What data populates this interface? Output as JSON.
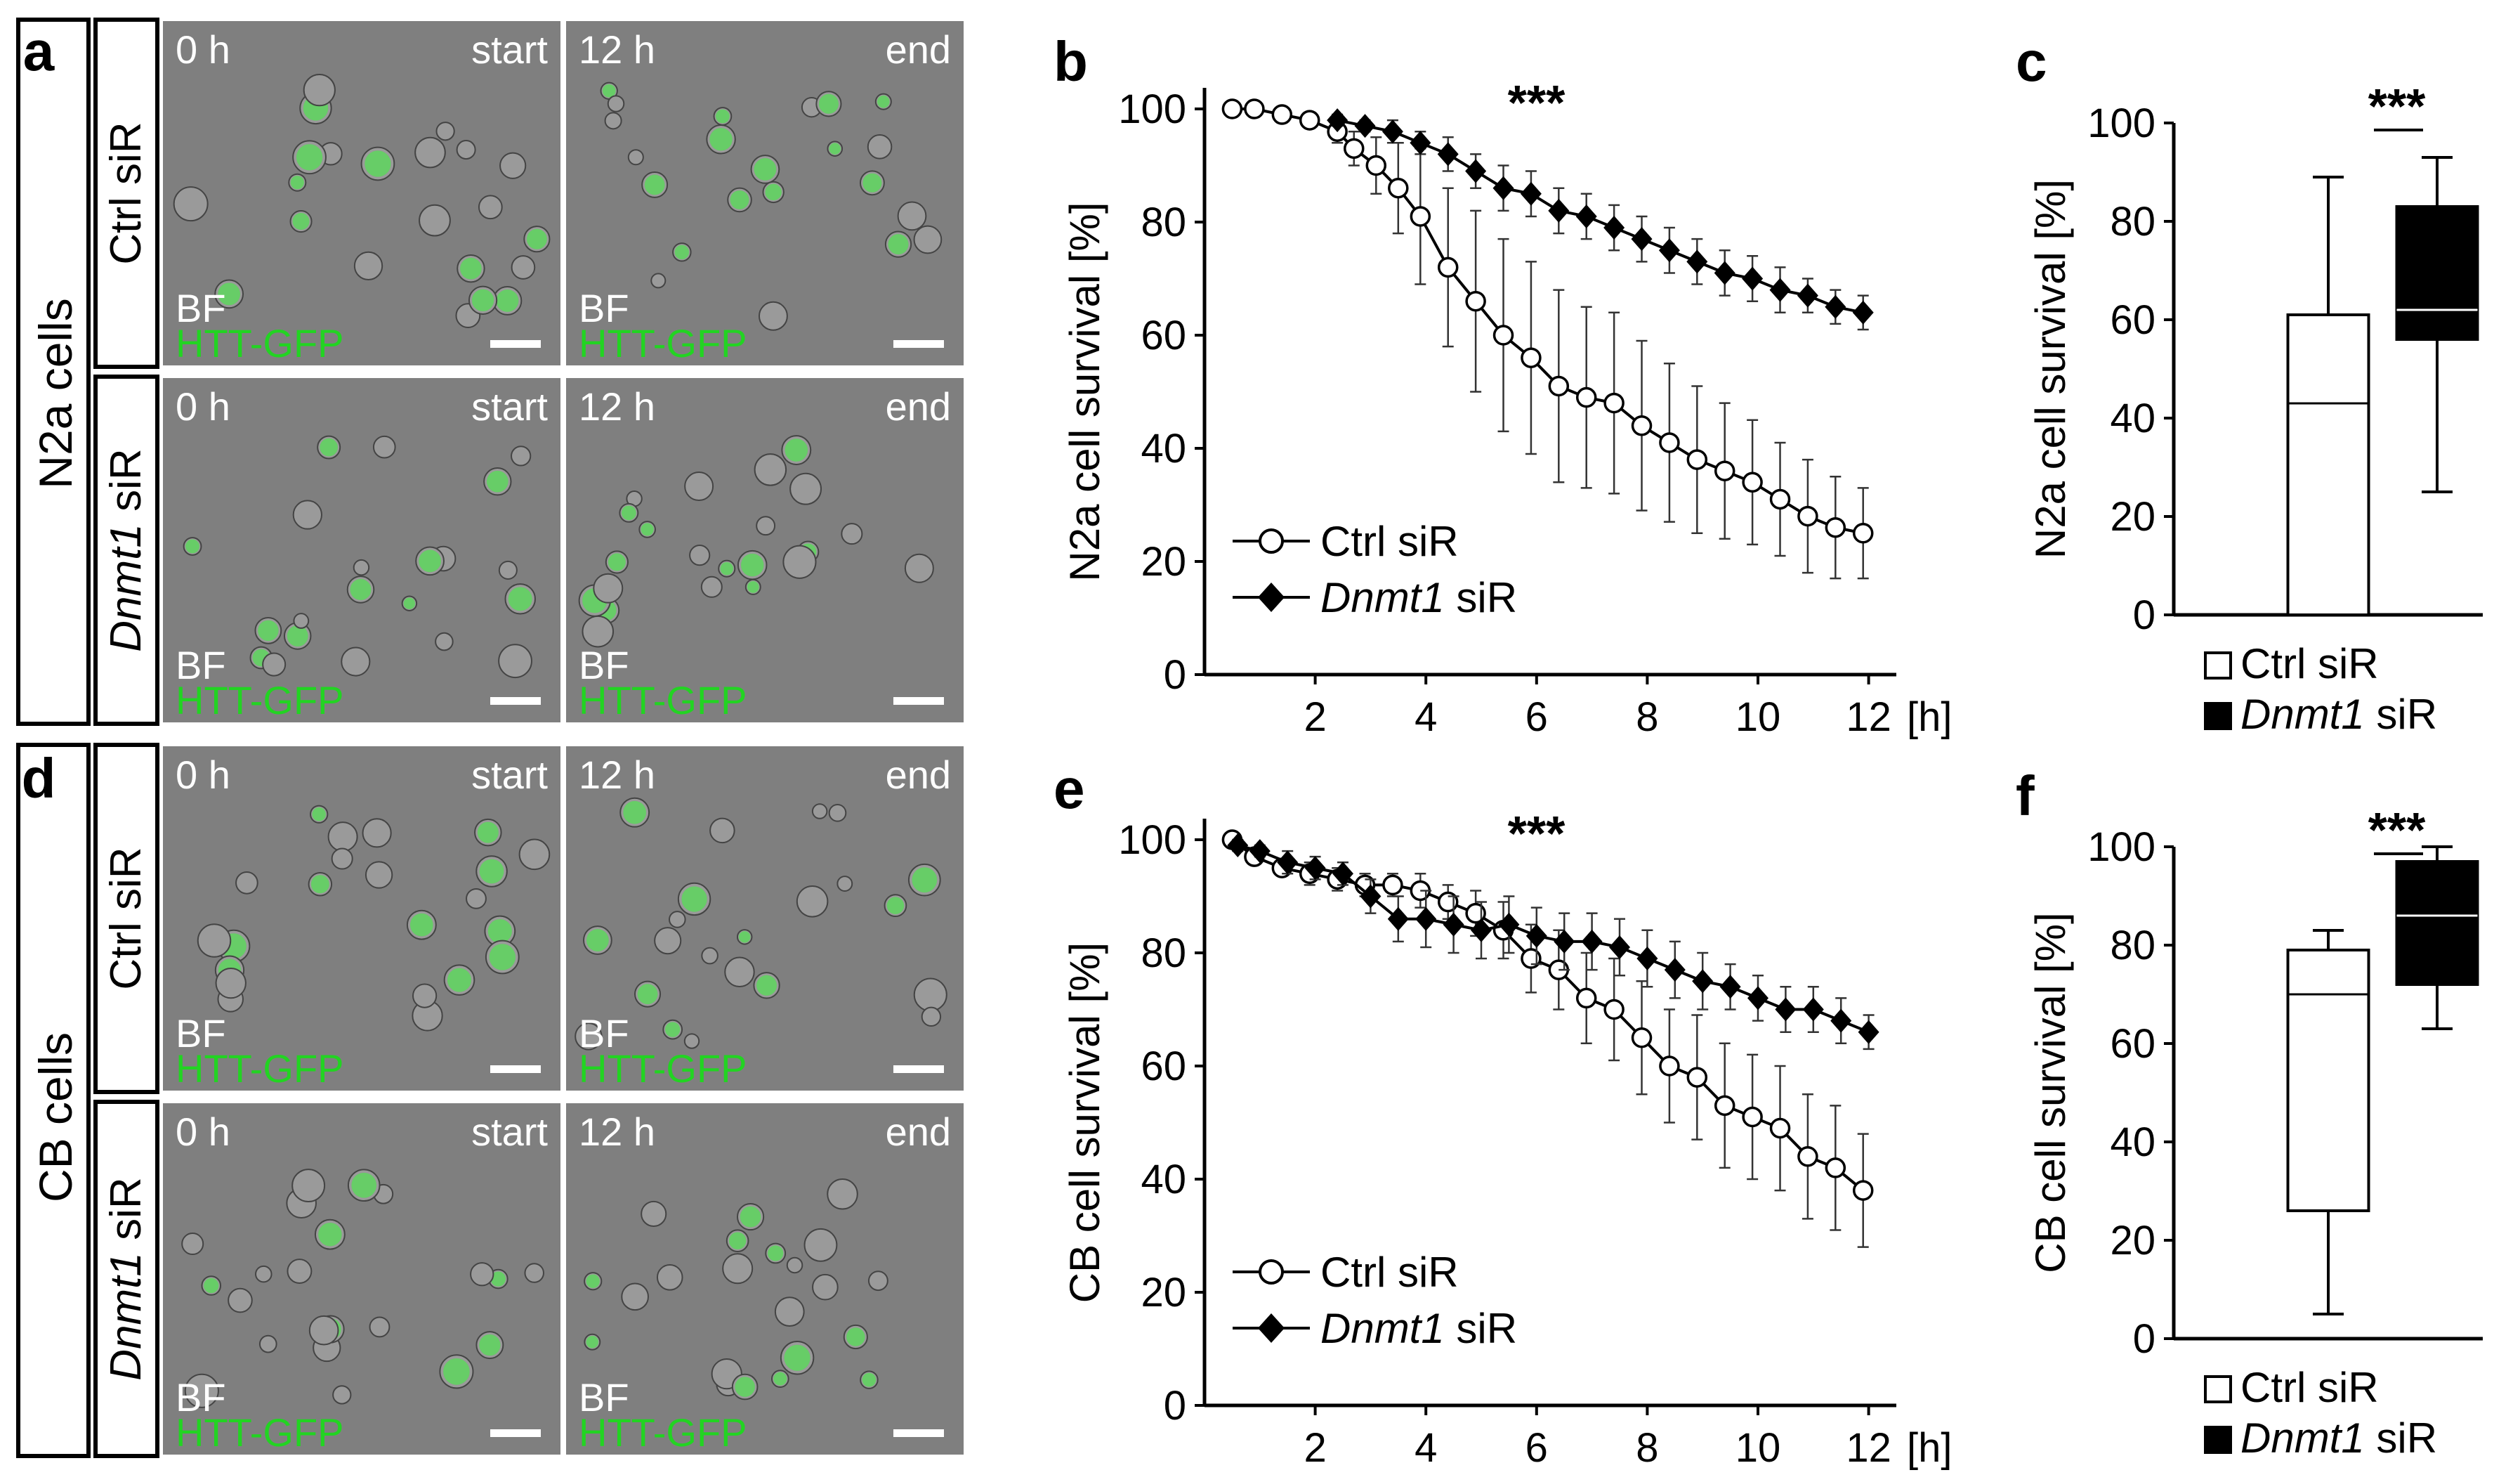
{
  "panel_letters": {
    "a": "a",
    "b": "b",
    "c": "c",
    "d": "d",
    "e": "e",
    "f": "f"
  },
  "row_labels": {
    "n2a": "N2a cells",
    "cb": "CB cells",
    "ctrl": "Ctrl siR",
    "dnmt1_gene": "Dnmt1",
    "dnmt1_suffix": " siR"
  },
  "microscopy_labels": {
    "time_start": "0 h",
    "time_end": "12 h",
    "start": "start",
    "end": "end",
    "bf": "BF",
    "htt": "HTT-GFP"
  },
  "colors": {
    "gfp_text": "#22d422",
    "gfp_cell": "#55dd55",
    "micrograph_bg": "#7f7f7f",
    "scale_bar": "#ffffff"
  },
  "chart_data": [
    {
      "id": "b",
      "type": "line",
      "ylabel": "N2a cell survival [%]",
      "xunit": "[h]",
      "xticks": [
        2,
        4,
        6,
        8,
        10,
        12
      ],
      "yticks": [
        0,
        20,
        40,
        60,
        80,
        100
      ],
      "xlim": [
        0,
        12.5
      ],
      "ylim": [
        0,
        100
      ],
      "significance": "***",
      "legend_placement": "bottom-left",
      "series": [
        {
          "name": "Ctrl siR",
          "name_italic": "",
          "name_plain": "Ctrl siR",
          "marker": "open-circle",
          "x": [
            0.5,
            0.9,
            1.4,
            1.9,
            2.4,
            2.7,
            3.1,
            3.5,
            3.9,
            4.4,
            4.9,
            5.4,
            5.9,
            6.4,
            6.9,
            7.4,
            7.9,
            8.4,
            8.9,
            9.4,
            9.9,
            10.4,
            10.9,
            11.4,
            11.9
          ],
          "values": [
            100,
            100,
            99,
            98,
            96,
            93,
            90,
            86,
            81,
            72,
            66,
            60,
            56,
            51,
            49,
            48,
            44,
            41,
            38,
            36,
            34,
            31,
            28,
            26,
            25
          ],
          "errors": [
            0,
            0,
            0,
            0,
            2,
            3,
            5,
            8,
            12,
            14,
            16,
            17,
            17,
            17,
            16,
            16,
            15,
            14,
            13,
            12,
            11,
            10,
            10,
            9,
            8
          ]
        },
        {
          "name": "Dnmt1 siR",
          "name_italic": "Dnmt1",
          "name_plain": " siR",
          "marker": "filled-diamond",
          "x": [
            2.4,
            2.9,
            3.4,
            3.9,
            4.4,
            4.9,
            5.4,
            5.9,
            6.4,
            6.9,
            7.4,
            7.9,
            8.4,
            8.9,
            9.4,
            9.9,
            10.4,
            10.9,
            11.4,
            11.9
          ],
          "values": [
            98,
            97,
            96,
            94,
            92,
            89,
            86,
            85,
            82,
            81,
            79,
            77,
            75,
            73,
            71,
            70,
            68,
            67,
            65,
            64
          ],
          "errors": [
            1,
            1,
            2,
            2,
            3,
            3,
            4,
            4,
            4,
            4,
            4,
            4,
            4,
            4,
            4,
            4,
            4,
            3,
            3,
            3
          ]
        }
      ]
    },
    {
      "id": "c",
      "type": "boxplot",
      "ylabel": "N2a cell survival [%]",
      "yticks": [
        0,
        20,
        40,
        60,
        80,
        100
      ],
      "ylim": [
        0,
        100
      ],
      "significance": "***",
      "boxes": [
        {
          "name": "Ctrl siR",
          "name_italic": "",
          "name_plain": "Ctrl siR",
          "fill": "#ffffff",
          "median_color": "#000000",
          "min": 0,
          "q1": 0,
          "median": 43,
          "q3": 61,
          "max": 89
        },
        {
          "name": "Dnmt1 siR",
          "name_italic": "Dnmt1",
          "name_plain": " siR",
          "fill": "#000000",
          "median_color": "#ffffff",
          "min": 25,
          "q1": 56,
          "median": 62,
          "q3": 83,
          "max": 93
        }
      ]
    },
    {
      "id": "e",
      "type": "line",
      "ylabel": "CB cell survival [%]",
      "xunit": "[h]",
      "xticks": [
        2,
        4,
        6,
        8,
        10,
        12
      ],
      "yticks": [
        0,
        20,
        40,
        60,
        80,
        100
      ],
      "xlim": [
        0,
        12.5
      ],
      "ylim": [
        0,
        100
      ],
      "significance": "***",
      "legend_placement": "bottom-left",
      "series": [
        {
          "name": "Ctrl siR",
          "name_italic": "",
          "name_plain": "Ctrl siR",
          "marker": "open-circle",
          "x": [
            0.5,
            0.9,
            1.4,
            1.9,
            2.4,
            2.9,
            3.4,
            3.9,
            4.4,
            4.9,
            5.4,
            5.9,
            6.4,
            6.9,
            7.4,
            7.9,
            8.4,
            8.9,
            9.4,
            9.9,
            10.4,
            10.9,
            11.4,
            11.9
          ],
          "values": [
            100,
            97,
            95,
            94,
            93,
            92,
            92,
            91,
            89,
            87,
            84,
            79,
            77,
            72,
            70,
            65,
            60,
            58,
            53,
            51,
            49,
            44,
            42,
            38
          ],
          "errors": [
            0,
            1,
            1,
            2,
            2,
            2,
            2,
            3,
            3,
            4,
            5,
            6,
            7,
            8,
            9,
            10,
            10,
            11,
            11,
            11,
            11,
            11,
            11,
            10
          ]
        },
        {
          "name": "Dnmt1 siR",
          "name_italic": "Dnmt1",
          "name_plain": " siR",
          "marker": "filled-diamond",
          "x": [
            0.6,
            1.0,
            1.5,
            2.0,
            2.5,
            3.0,
            3.5,
            4.0,
            4.5,
            5.0,
            5.5,
            6.0,
            6.5,
            7.0,
            7.5,
            8.0,
            8.5,
            9.0,
            9.5,
            10.0,
            10.5,
            11.0,
            11.5,
            12.0
          ],
          "values": [
            99,
            98,
            96,
            95,
            94,
            90,
            86,
            86,
            85,
            84,
            85,
            83,
            82,
            82,
            81,
            79,
            77,
            75,
            74,
            72,
            70,
            70,
            68,
            66
          ],
          "errors": [
            1,
            1,
            2,
            2,
            2,
            3,
            4,
            5,
            5,
            5,
            5,
            5,
            5,
            5,
            5,
            5,
            5,
            5,
            4,
            4,
            4,
            4,
            4,
            3
          ]
        }
      ]
    },
    {
      "id": "f",
      "type": "boxplot",
      "ylabel": "CB cell survival [%]",
      "yticks": [
        0,
        20,
        40,
        60,
        80,
        100
      ],
      "ylim": [
        0,
        100
      ],
      "significance": "***",
      "boxes": [
        {
          "name": "Ctrl siR",
          "name_italic": "",
          "name_plain": "Ctrl siR",
          "fill": "#ffffff",
          "median_color": "#000000",
          "min": 5,
          "q1": 26,
          "median": 70,
          "q3": 79,
          "max": 83
        },
        {
          "name": "Dnmt1 siR",
          "name_italic": "Dnmt1",
          "name_plain": " siR",
          "fill": "#000000",
          "median_color": "#ffffff",
          "min": 63,
          "q1": 72,
          "median": 86,
          "q3": 97,
          "max": 100
        }
      ]
    }
  ]
}
